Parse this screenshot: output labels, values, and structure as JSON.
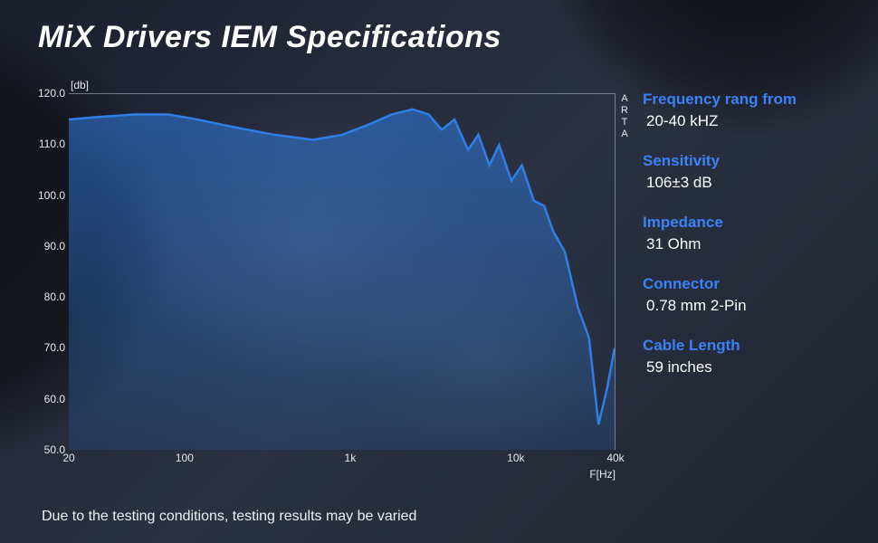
{
  "title": "MiX Drivers IEM Specifications",
  "title_fontsize": 34,
  "title_color": "#ffffff",
  "accent_color": "#3b82f6",
  "background_gradient": [
    "#1a1f2e",
    "#2a3142",
    "#1e2430"
  ],
  "disclaimer": "Due to the testing conditions, testing results may be varied",
  "specs": [
    {
      "label": "Frequency rang from",
      "value": "20-40 kHZ"
    },
    {
      "label": "Sensitivity",
      "value": "106±3 dB"
    },
    {
      "label": "Impedance",
      "value": "31 Ohm"
    },
    {
      "label": "Connector",
      "value": "0.78 mm 2-Pin"
    },
    {
      "label": "Cable Length",
      "value": "59 inches"
    }
  ],
  "spec_label_color": "#3b82f6",
  "spec_label_fontsize": 17,
  "spec_value_color": "#ffffff",
  "chart": {
    "type": "line-area",
    "y_unit_label": "[db]",
    "x_unit_label": "F[Hz]",
    "watermark": "ARTA",
    "ylim": [
      50,
      120
    ],
    "ytick_step": 10,
    "y_ticks": [
      "120.0",
      "110.0",
      "100.0",
      "90.0",
      "80.0",
      "70.0",
      "60.0",
      "50.0"
    ],
    "x_scale": "log",
    "xlim_hz": [
      20,
      40000
    ],
    "x_ticks": [
      {
        "hz": 20,
        "label": "20"
      },
      {
        "hz": 100,
        "label": "100"
      },
      {
        "hz": 1000,
        "label": "1k"
      },
      {
        "hz": 10000,
        "label": "10k"
      },
      {
        "hz": 40000,
        "label": "40k"
      }
    ],
    "line_color": "#2f7fe6",
    "line_width": 2.5,
    "fill_color": "rgba(47,127,230,0.55)",
    "fill_color_end": "rgba(47,127,230,0.15)",
    "grid_color": "rgba(200,210,230,0.5)",
    "tick_fontsize": 12,
    "tick_color": "#e8eaf0",
    "data_points": [
      {
        "hz": 20,
        "db": 115
      },
      {
        "hz": 30,
        "db": 115.5
      },
      {
        "hz": 50,
        "db": 116
      },
      {
        "hz": 80,
        "db": 116
      },
      {
        "hz": 120,
        "db": 115
      },
      {
        "hz": 200,
        "db": 113.5
      },
      {
        "hz": 350,
        "db": 112
      },
      {
        "hz": 600,
        "db": 111
      },
      {
        "hz": 900,
        "db": 112
      },
      {
        "hz": 1300,
        "db": 114
      },
      {
        "hz": 1800,
        "db": 116
      },
      {
        "hz": 2400,
        "db": 117
      },
      {
        "hz": 3000,
        "db": 116
      },
      {
        "hz": 3600,
        "db": 113
      },
      {
        "hz": 4300,
        "db": 115
      },
      {
        "hz": 5200,
        "db": 109
      },
      {
        "hz": 6000,
        "db": 112
      },
      {
        "hz": 7000,
        "db": 106
      },
      {
        "hz": 8000,
        "db": 110
      },
      {
        "hz": 9500,
        "db": 103
      },
      {
        "hz": 11000,
        "db": 106
      },
      {
        "hz": 13000,
        "db": 99
      },
      {
        "hz": 15000,
        "db": 98
      },
      {
        "hz": 17000,
        "db": 93
      },
      {
        "hz": 20000,
        "db": 89
      },
      {
        "hz": 24000,
        "db": 78
      },
      {
        "hz": 28000,
        "db": 72
      },
      {
        "hz": 32000,
        "db": 55
      },
      {
        "hz": 36000,
        "db": 62
      },
      {
        "hz": 40000,
        "db": 70
      }
    ]
  }
}
